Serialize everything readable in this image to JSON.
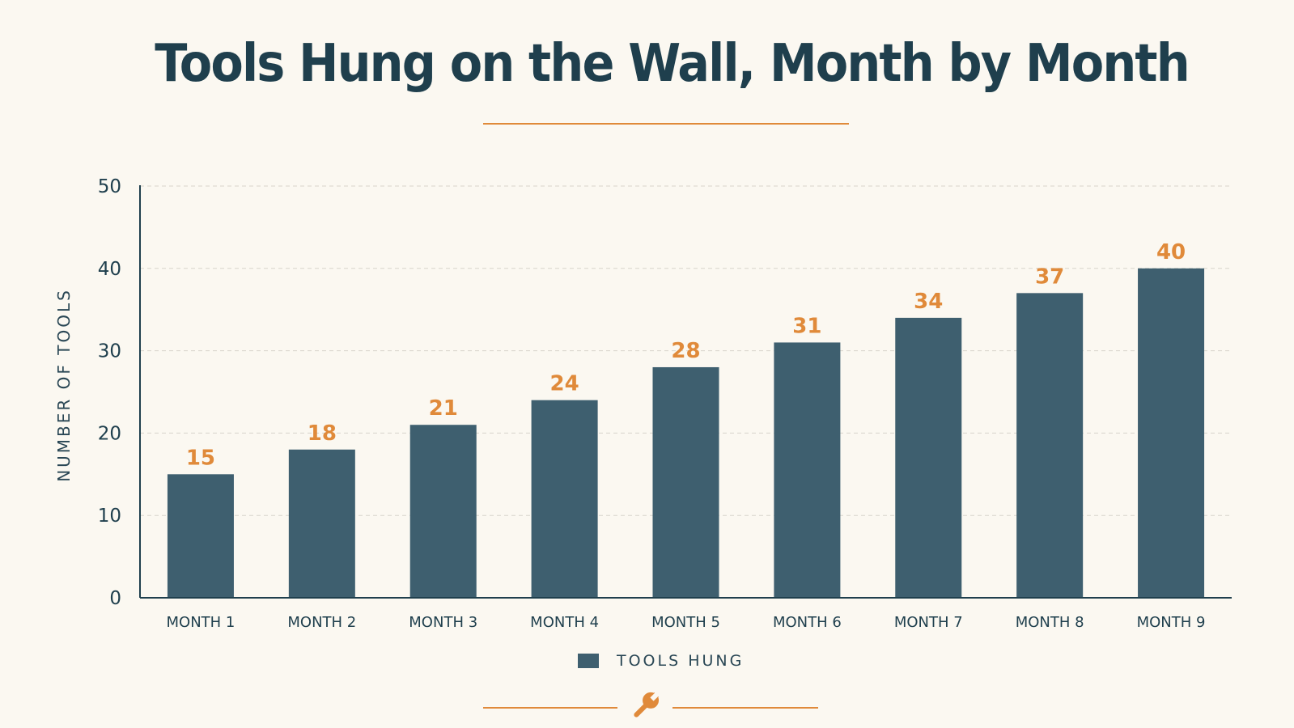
{
  "chart_data": {
    "type": "bar",
    "title": "Tools Hung on the Wall, Month by Month",
    "xlabel": "",
    "ylabel": "NUMBER OF TOOLS",
    "categories": [
      "MONTH 1",
      "MONTH 2",
      "MONTH 3",
      "MONTH 4",
      "MONTH 5",
      "MONTH 6",
      "MONTH 7",
      "MONTH 8",
      "MONTH 9"
    ],
    "series": [
      {
        "name": "TOOLS HUNG",
        "values": [
          15,
          18,
          21,
          24,
          28,
          31,
          34,
          37,
          40
        ]
      }
    ],
    "ylim": [
      0,
      50
    ],
    "yticks": [
      0,
      10,
      20,
      30,
      40,
      50
    ],
    "grid": true,
    "legend": "bottom-center",
    "data_labels": true
  },
  "colors": {
    "background": "#fbf8f1",
    "bar": "#3e5f6f",
    "accent": "#e08a3a",
    "text": "#1f3f4d"
  },
  "icons": {
    "footer": "wrench-icon"
  }
}
